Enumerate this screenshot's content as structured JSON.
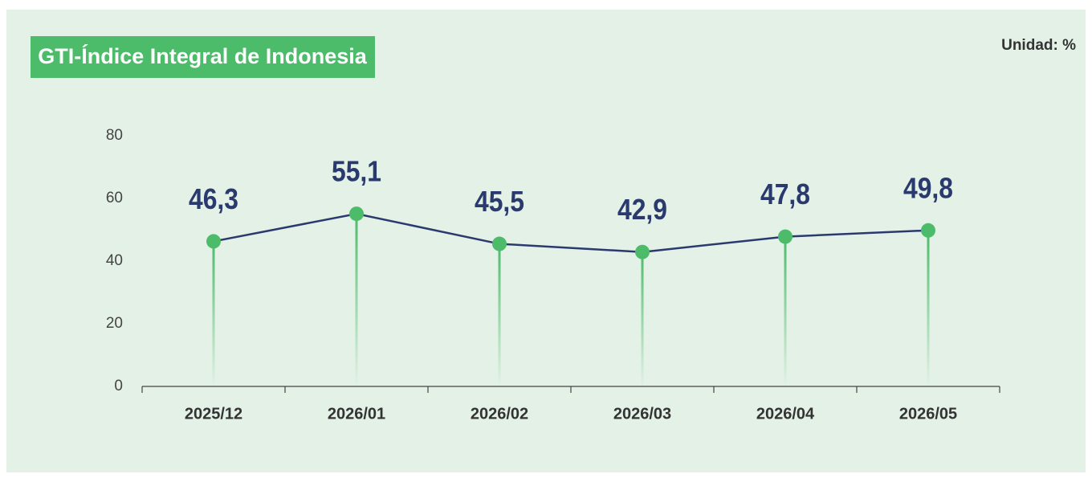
{
  "chart_data": {
    "type": "line",
    "title": "GTI-Índice Integral de Indonesia",
    "unit": "Unidad: %",
    "categories": [
      "2025/12",
      "2026/01",
      "2026/02",
      "2026/03",
      "2026/04",
      "2026/05"
    ],
    "values": [
      46.3,
      55.1,
      45.5,
      42.9,
      47.8,
      49.8
    ],
    "value_labels": [
      "46,3",
      "55,1",
      "45,5",
      "42,9",
      "47,8",
      "49,8"
    ],
    "color": "#2b3a6e",
    "marker_color": "#4cbb6a",
    "ylim": [
      0,
      80
    ],
    "yticks": [
      0,
      20,
      40,
      60,
      80
    ],
    "grid": false
  }
}
